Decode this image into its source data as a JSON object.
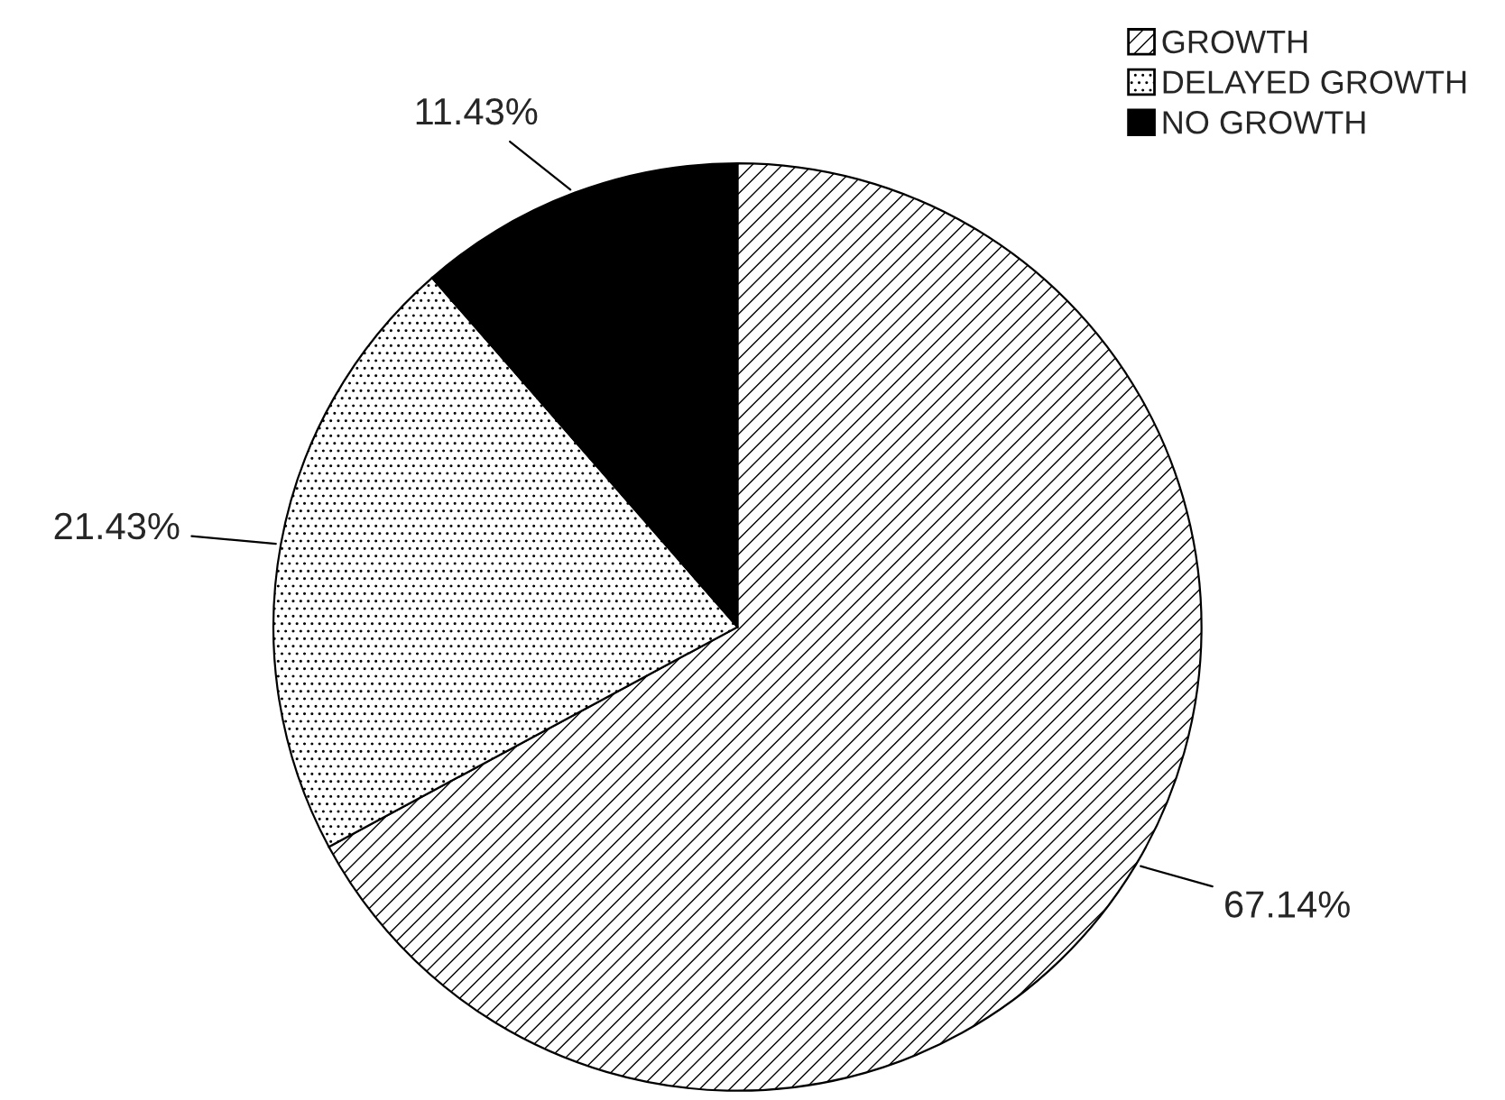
{
  "chart_data": {
    "type": "pie",
    "categories": [
      "GROWTH",
      "DELAYED GROWTH",
      "NO GROWTH"
    ],
    "values": [
      67.14,
      21.43,
      11.43
    ],
    "value_labels": [
      "67.14%",
      "21.43%",
      "11.43%"
    ],
    "colors": [
      "#000000",
      "#000000",
      "#000000"
    ],
    "legend": "top right"
  }
}
